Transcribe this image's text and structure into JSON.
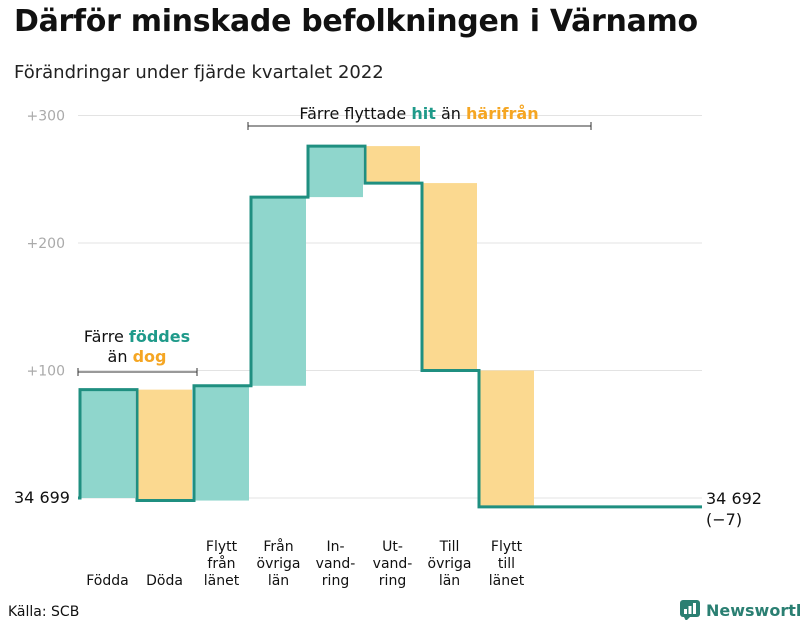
{
  "title": "Därför minskade befolkningen i Värnamo",
  "subtitle": "Förändringar under fjärde kvartalet 2022",
  "source": "Källa: SCB",
  "brand": "Newsworthy",
  "colors": {
    "increase": "#8fd6cc",
    "decrease": "#fbd990",
    "line": "#1f8f80",
    "grid": "#e3e3e3",
    "tick": "#aaaaaa",
    "teal_text": "#1f9a8a",
    "orange_text": "#f5a623"
  },
  "annotations": {
    "births": {
      "line1_prefix": "Färre ",
      "line1_highlight": "föddes",
      "line2_prefix": "än ",
      "line2_highlight": "dog"
    },
    "migration": {
      "prefix": "Färre flyttade ",
      "highlight1": "hit",
      "middle": " än ",
      "highlight2": "härifrån"
    }
  },
  "start_label": "34 699",
  "end_label_line1": "34 692",
  "end_label_line2": "(−7)",
  "chart_data": {
    "type": "waterfall",
    "baseline": 34699,
    "end_value": 34692,
    "net_change": -7,
    "y_ticks": [
      {
        "value": 100,
        "label": "+100"
      },
      {
        "value": 200,
        "label": "+200"
      },
      {
        "value": 300,
        "label": "+300"
      }
    ],
    "ylim": [
      0,
      300
    ],
    "steps": [
      {
        "category": "Födda",
        "lines": [
          "Födda"
        ],
        "value": 85
      },
      {
        "category": "Döda",
        "lines": [
          "Döda"
        ],
        "value": -87
      },
      {
        "category": "Flytt från länet",
        "lines": [
          "Flytt",
          "från",
          "länet"
        ],
        "value": 90
      },
      {
        "category": "Från övriga län",
        "lines": [
          "Från",
          "övriga",
          "län"
        ],
        "value": 148
      },
      {
        "category": "Invandring",
        "lines": [
          "In-",
          "vand-",
          "ring"
        ],
        "value": 40
      },
      {
        "category": "Utvandring",
        "lines": [
          "Ut-",
          "vand-",
          "ring"
        ],
        "value": -29
      },
      {
        "category": "Till övriga län",
        "lines": [
          "Till",
          "övriga",
          "län"
        ],
        "value": -147
      },
      {
        "category": "Flytt till länet",
        "lines": [
          "Flytt",
          "till",
          "länet"
        ],
        "value": -107
      }
    ]
  }
}
